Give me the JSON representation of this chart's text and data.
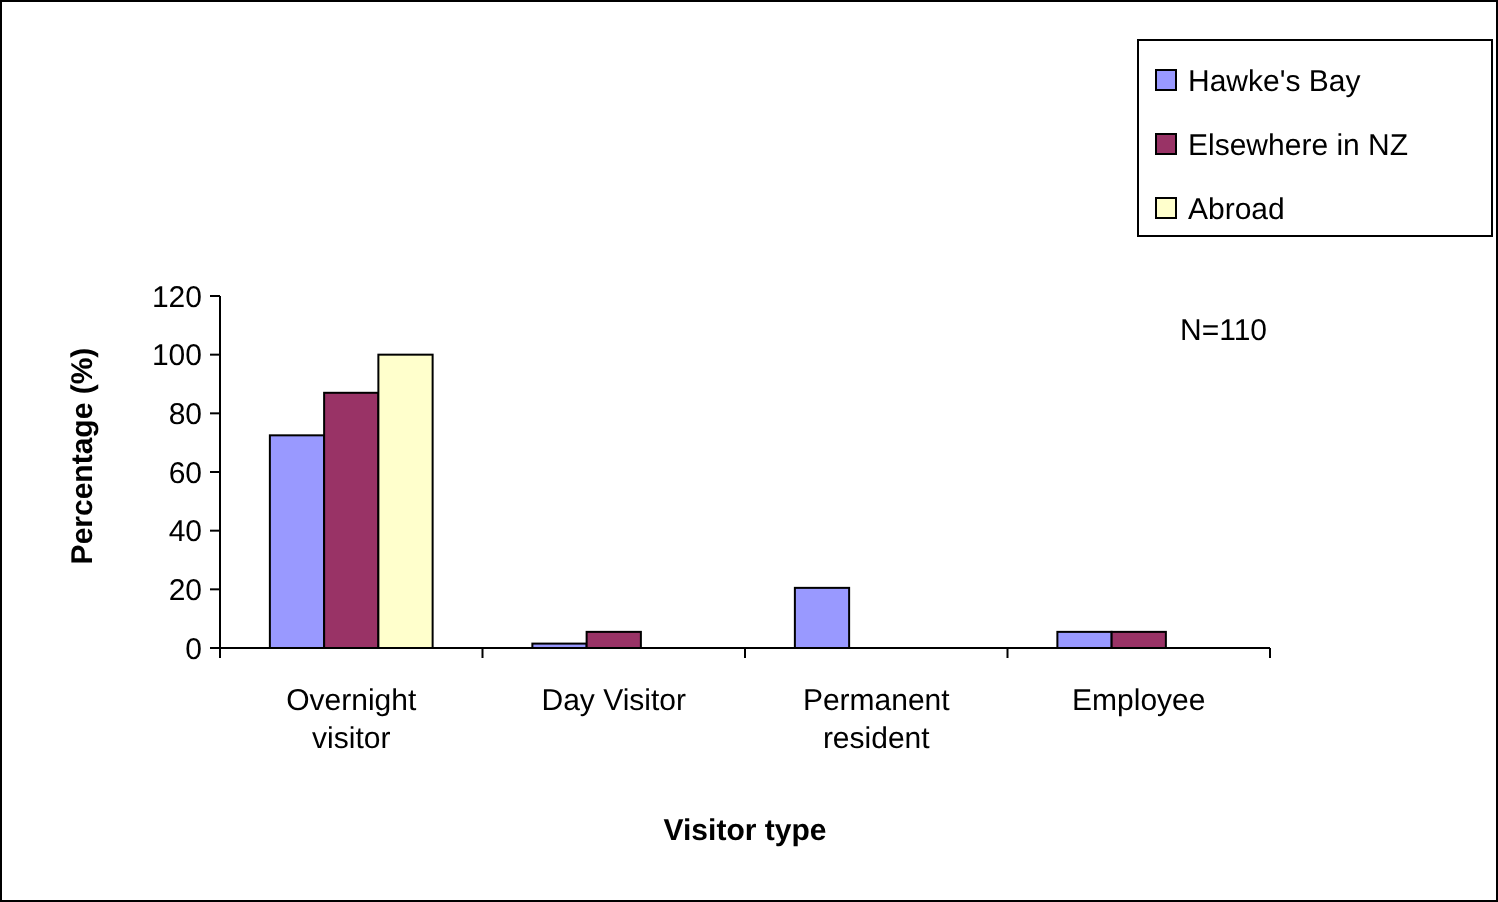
{
  "chart_data": {
    "type": "bar",
    "xlabel": "Visitor type",
    "ylabel": "Percentage (%)",
    "categories": [
      "Overnight visitor",
      "Day Visitor",
      "Permanent resident",
      "Employee"
    ],
    "series": [
      {
        "name": "Hawke's Bay",
        "color": "#9999ff",
        "values": [
          72.5,
          1.5,
          20.5,
          5.5
        ]
      },
      {
        "name": "Elsewhere in NZ",
        "color": "#993366",
        "values": [
          87,
          5.5,
          0,
          5.5
        ]
      },
      {
        "name": "Abroad",
        "color": "#ffffcc",
        "values": [
          100,
          0,
          0,
          0
        ]
      }
    ],
    "ylim": [
      0,
      120
    ],
    "yticks": [
      0,
      20,
      40,
      60,
      80,
      100,
      120
    ],
    "grid": false,
    "legend": "top right",
    "annotations": [
      "N=110"
    ]
  }
}
